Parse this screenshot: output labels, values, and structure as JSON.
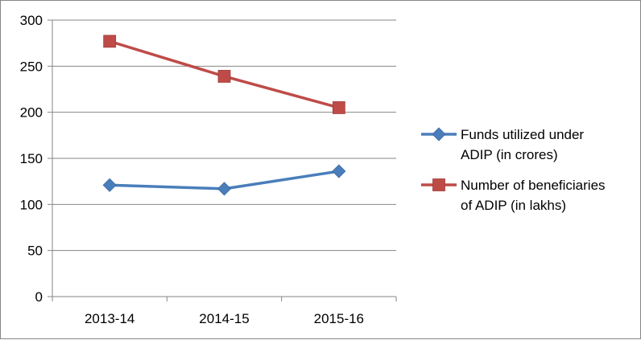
{
  "chart_data": {
    "type": "line",
    "categories": [
      "2013-14",
      "2014-15",
      "2015-16"
    ],
    "series": [
      {
        "name": "Funds utilized under ADIP (in crores)",
        "legend_lines": [
          "Funds utilized under",
          "ADIP (in crores)"
        ],
        "values": [
          121,
          117,
          136
        ],
        "color": "#4a7ebb",
        "marker": "diamond"
      },
      {
        "name": "Number of beneficiaries of ADIP (in lakhs)",
        "legend_lines": [
          "Number of beneficiaries",
          "of ADIP (in lakhs)"
        ],
        "values": [
          277,
          239,
          205
        ],
        "color": "#be4b48",
        "marker": "square"
      }
    ],
    "ylim": [
      0,
      300
    ],
    "yticks": [
      "0",
      "50",
      "100",
      "150",
      "200",
      "250",
      "300"
    ],
    "grid": true,
    "legend_position": "right"
  }
}
